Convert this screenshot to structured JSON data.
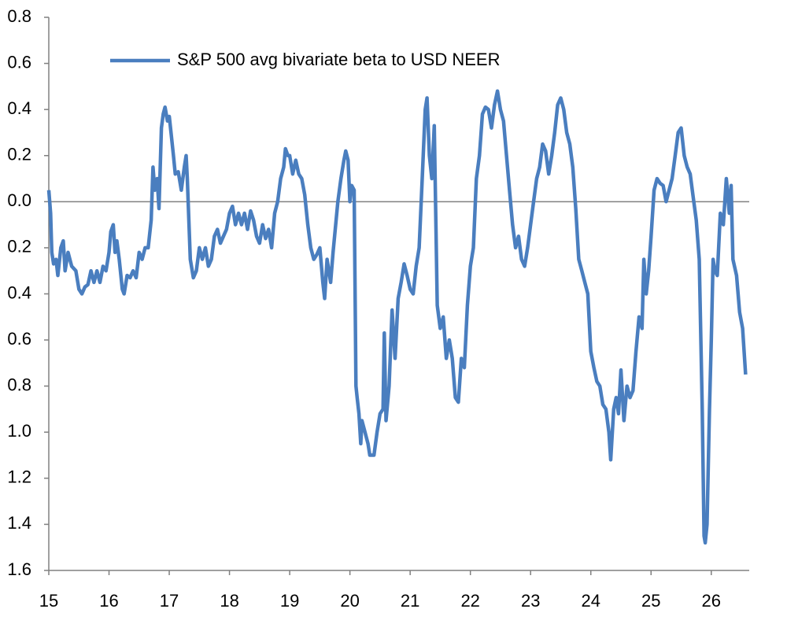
{
  "chart_data": {
    "type": "line",
    "x": [
      15.0,
      15.03,
      15.05,
      15.08,
      15.12,
      15.15,
      15.2,
      15.24,
      15.27,
      15.32,
      15.38,
      15.45,
      15.5,
      15.55,
      15.6,
      15.65,
      15.7,
      15.75,
      15.8,
      15.85,
      15.9,
      15.95,
      16.0,
      16.03,
      16.07,
      16.1,
      16.13,
      16.17,
      16.22,
      16.25,
      16.3,
      16.35,
      16.4,
      16.45,
      16.5,
      16.55,
      16.6,
      16.65,
      16.7,
      16.73,
      16.76,
      16.8,
      16.83,
      16.87,
      16.9,
      16.93,
      16.97,
      17.0,
      17.03,
      17.07,
      17.1,
      17.15,
      17.2,
      17.25,
      17.28,
      17.3,
      17.35,
      17.4,
      17.45,
      17.5,
      17.55,
      17.6,
      17.65,
      17.7,
      17.75,
      17.8,
      17.85,
      17.9,
      17.95,
      18.0,
      18.05,
      18.1,
      18.15,
      18.2,
      18.25,
      18.3,
      18.35,
      18.4,
      18.45,
      18.5,
      18.55,
      18.6,
      18.65,
      18.7,
      18.75,
      18.8,
      18.85,
      18.9,
      18.93,
      18.97,
      19.0,
      19.05,
      19.1,
      19.15,
      19.2,
      19.25,
      19.3,
      19.35,
      19.4,
      19.45,
      19.5,
      19.55,
      19.58,
      19.62,
      19.68,
      19.72,
      19.8,
      19.85,
      19.9,
      19.93,
      19.97,
      20.0,
      20.03,
      20.07,
      20.1,
      20.12,
      20.15,
      20.18,
      20.2,
      20.25,
      20.3,
      20.33,
      20.4,
      20.45,
      20.5,
      20.55,
      20.57,
      20.6,
      20.65,
      20.7,
      20.75,
      20.8,
      20.85,
      20.9,
      20.95,
      21.0,
      21.05,
      21.1,
      21.15,
      21.2,
      21.25,
      21.28,
      21.32,
      21.36,
      21.4,
      21.45,
      21.5,
      21.55,
      21.6,
      21.65,
      21.7,
      21.75,
      21.8,
      21.85,
      21.9,
      21.95,
      22.0,
      22.05,
      22.1,
      22.15,
      22.2,
      22.25,
      22.3,
      22.35,
      22.4,
      22.45,
      22.5,
      22.55,
      22.6,
      22.65,
      22.7,
      22.75,
      22.8,
      22.85,
      22.9,
      22.95,
      23.0,
      23.05,
      23.1,
      23.15,
      23.2,
      23.25,
      23.3,
      23.35,
      23.4,
      23.45,
      23.5,
      23.55,
      23.6,
      23.65,
      23.7,
      23.75,
      23.8,
      23.85,
      23.9,
      23.95,
      24.0,
      24.05,
      24.1,
      24.15,
      24.2,
      24.25,
      24.3,
      24.33,
      24.38,
      24.42,
      24.46,
      24.5,
      24.55,
      24.6,
      24.65,
      24.7,
      24.75,
      24.8,
      24.85,
      24.88,
      24.92,
      24.96,
      25.0,
      25.05,
      25.1,
      25.15,
      25.2,
      25.25,
      25.3,
      25.35,
      25.4,
      25.45,
      25.5,
      25.55,
      25.6,
      25.65,
      25.7,
      25.75,
      25.8,
      25.85,
      25.88,
      25.9,
      25.93,
      25.97,
      26.0,
      26.03,
      26.06,
      26.1,
      26.15,
      26.2,
      26.25,
      26.3,
      26.33,
      26.36,
      26.42,
      26.47,
      26.52,
      26.57
    ],
    "series": [
      {
        "name": "S&P 500 avg bivariate beta to USD NEER",
        "color": "#4a7ebf",
        "values": [
          0.05,
          -0.05,
          -0.22,
          -0.27,
          -0.25,
          -0.32,
          -0.2,
          -0.17,
          -0.3,
          -0.22,
          -0.28,
          -0.3,
          -0.38,
          -0.4,
          -0.37,
          -0.36,
          -0.3,
          -0.35,
          -0.3,
          -0.35,
          -0.28,
          -0.3,
          -0.22,
          -0.13,
          -0.1,
          -0.22,
          -0.17,
          -0.25,
          -0.38,
          -0.4,
          -0.32,
          -0.33,
          -0.3,
          -0.33,
          -0.22,
          -0.25,
          -0.2,
          -0.2,
          -0.08,
          0.15,
          0.05,
          0.1,
          -0.03,
          0.32,
          0.38,
          0.41,
          0.35,
          0.37,
          0.3,
          0.2,
          0.12,
          0.13,
          0.05,
          0.15,
          0.2,
          0.1,
          -0.25,
          -0.33,
          -0.3,
          -0.2,
          -0.25,
          -0.2,
          -0.28,
          -0.25,
          -0.15,
          -0.12,
          -0.18,
          -0.15,
          -0.12,
          -0.05,
          -0.02,
          -0.1,
          -0.05,
          -0.1,
          -0.05,
          -0.12,
          -0.04,
          -0.08,
          -0.15,
          -0.18,
          -0.1,
          -0.16,
          -0.12,
          -0.2,
          -0.05,
          0.0,
          0.1,
          0.15,
          0.23,
          0.2,
          0.2,
          0.12,
          0.18,
          0.12,
          0.1,
          0.03,
          -0.1,
          -0.2,
          -0.25,
          -0.23,
          -0.2,
          -0.35,
          -0.42,
          -0.25,
          -0.35,
          -0.22,
          0.0,
          0.1,
          0.18,
          0.22,
          0.18,
          0.0,
          0.07,
          0.05,
          -0.8,
          -0.85,
          -0.92,
          -1.05,
          -0.95,
          -1.0,
          -1.05,
          -1.1,
          -1.1,
          -1.0,
          -0.92,
          -0.9,
          -0.57,
          -0.95,
          -0.8,
          -0.47,
          -0.68,
          -0.42,
          -0.35,
          -0.27,
          -0.32,
          -0.38,
          -0.4,
          -0.28,
          -0.2,
          0.1,
          0.4,
          0.45,
          0.2,
          0.1,
          0.33,
          -0.45,
          -0.55,
          -0.5,
          -0.68,
          -0.6,
          -0.68,
          -0.85,
          -0.87,
          -0.68,
          -0.72,
          -0.45,
          -0.28,
          -0.2,
          0.1,
          0.2,
          0.38,
          0.41,
          0.4,
          0.32,
          0.42,
          0.48,
          0.4,
          0.35,
          0.2,
          0.05,
          -0.1,
          -0.2,
          -0.15,
          -0.25,
          -0.28,
          -0.2,
          -0.1,
          0.0,
          0.1,
          0.15,
          0.25,
          0.22,
          0.12,
          0.2,
          0.3,
          0.42,
          0.45,
          0.4,
          0.3,
          0.25,
          0.15,
          -0.03,
          -0.25,
          -0.3,
          -0.35,
          -0.4,
          -0.65,
          -0.72,
          -0.78,
          -0.8,
          -0.88,
          -0.9,
          -1.0,
          -1.12,
          -0.9,
          -0.85,
          -0.92,
          -0.73,
          -0.95,
          -0.8,
          -0.85,
          -0.82,
          -0.65,
          -0.5,
          -0.55,
          -0.25,
          -0.4,
          -0.3,
          -0.15,
          0.05,
          0.1,
          0.08,
          0.07,
          0.0,
          0.05,
          0.1,
          0.2,
          0.3,
          0.32,
          0.2,
          0.15,
          0.12,
          0.02,
          -0.08,
          -0.25,
          -0.9,
          -1.45,
          -1.48,
          -1.4,
          -0.9,
          -0.6,
          -0.25,
          -0.3,
          -0.32,
          -0.05,
          -0.1,
          0.1,
          -0.05,
          0.07,
          -0.25,
          -0.32,
          -0.48,
          -0.55,
          -0.75
        ]
      }
    ],
    "xlim": [
      15,
      26.63
    ],
    "xticks": [
      15,
      16,
      17,
      18,
      19,
      20,
      21,
      22,
      23,
      24,
      25,
      26
    ],
    "ylim": [
      -1.6,
      0.8
    ],
    "yticks": [
      {
        "value": -1.6,
        "label": "1.6"
      },
      {
        "value": -1.4,
        "label": "1.4"
      },
      {
        "value": -1.2,
        "label": "1.2"
      },
      {
        "value": -1.0,
        "label": "1.0"
      },
      {
        "value": -0.8,
        "label": "0.8"
      },
      {
        "value": -0.6,
        "label": "0.6"
      },
      {
        "value": -0.4,
        "label": "0.4"
      },
      {
        "value": -0.2,
        "label": "0.2"
      },
      {
        "value": 0,
        "label": "0.0"
      },
      {
        "value": 0.2,
        "label": "0.2"
      },
      {
        "value": 0.4,
        "label": "0.4"
      },
      {
        "value": 0.6,
        "label": "0.6"
      },
      {
        "value": 0.8,
        "label": "0.8"
      }
    ],
    "legend": "top-left"
  }
}
